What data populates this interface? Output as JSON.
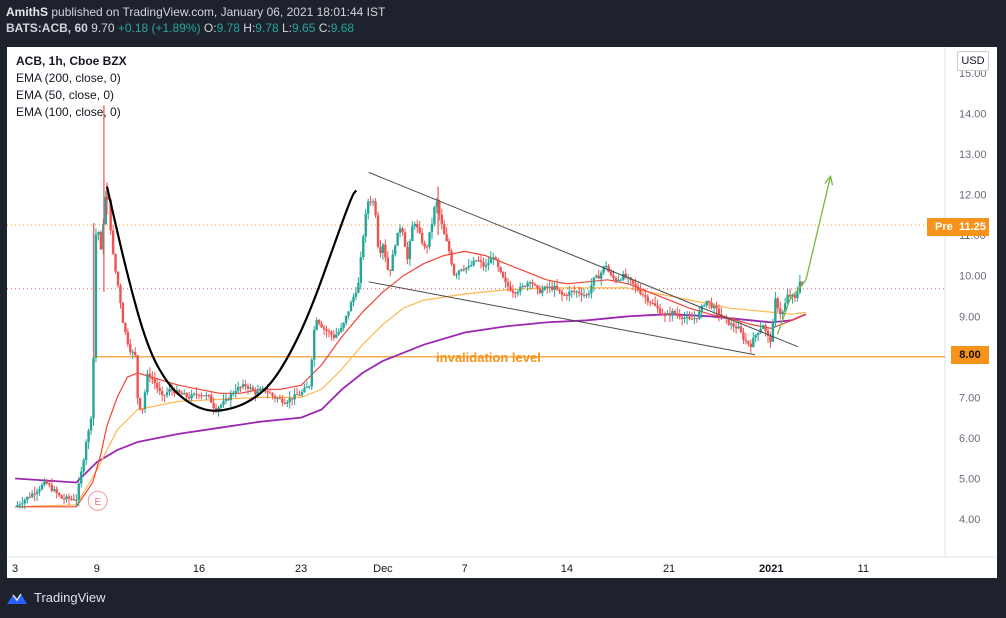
{
  "header": {
    "author": "AmithS",
    "published": "published on TradingView.com, January 06, 2021 18:01:44 IST",
    "symbol": "BATS:ACB, 60",
    "last": "9.70",
    "change": "+0.18 (+1.89%)",
    "o_label": "O:",
    "o": "9.78",
    "h_label": "H:",
    "h": "9.78",
    "l_label": "L:",
    "l": "9.65",
    "c_label": "C:",
    "c": "9.68"
  },
  "legend": {
    "title": "ACB, 1h, Cboe BZX",
    "ema200": "EMA (200, close, 0)",
    "ema50": "EMA (50, close, 0)",
    "ema100": "EMA (100, close, 0)"
  },
  "price_scale": {
    "currency": "USD"
  },
  "tags": {
    "pre_label": "Pre",
    "pre_value": "11.25",
    "level_value": "8.00"
  },
  "annotations": {
    "invalidation": "invalidation level",
    "event_marker": "E"
  },
  "footer": {
    "brand": "TradingView"
  },
  "colors": {
    "up": "#26a69a",
    "down": "#ef5350",
    "ema200": "#9c27b0",
    "ema50": "#f44336",
    "ema100": "#ffb74d",
    "level": "#f7931a",
    "arrow": "#7cb342"
  },
  "chart_data": {
    "type": "candlestick",
    "title": "ACB, 1h, Cboe BZX",
    "ylim": [
      3.2,
      15.5
    ],
    "y_ticks": [
      "4.00",
      "5.00",
      "6.00",
      "7.00",
      "8.00",
      "9.00",
      "10.00",
      "11.00",
      "12.00",
      "13.00",
      "14.00",
      "15.00"
    ],
    "x_ticks": [
      {
        "label": "3",
        "pos": 0
      },
      {
        "label": "9",
        "pos": 4
      },
      {
        "label": "16",
        "pos": 9
      },
      {
        "label": "23",
        "pos": 14
      },
      {
        "label": "Dec",
        "pos": 18
      },
      {
        "label": "7",
        "pos": 22
      },
      {
        "label": "14",
        "pos": 27
      },
      {
        "label": "21",
        "pos": 32
      },
      {
        "label": "2021",
        "pos": 37
      },
      {
        "label": "11",
        "pos": 41.5
      }
    ],
    "xlim": [
      0,
      45.5
    ],
    "close_path": [
      [
        0,
        4.3
      ],
      [
        0.8,
        4.6
      ],
      [
        1.5,
        4.9
      ],
      [
        2.3,
        4.5
      ],
      [
        3,
        4.5
      ],
      [
        3.3,
        5.3
      ],
      [
        3.5,
        6.0
      ],
      [
        3.7,
        6.3
      ],
      [
        3.8,
        7.5
      ],
      [
        3.85,
        8.1
      ],
      [
        3.95,
        11.0
      ],
      [
        4.05,
        11.2
      ],
      [
        4.2,
        10.6
      ],
      [
        4.35,
        11.5
      ],
      [
        4.5,
        12.2
      ],
      [
        4.6,
        11.6
      ],
      [
        4.8,
        10.5
      ],
      [
        4.95,
        10.0
      ],
      [
        5.1,
        9.6
      ],
      [
        5.3,
        8.8
      ],
      [
        5.6,
        8.2
      ],
      [
        5.9,
        8.0
      ],
      [
        6.0,
        7.0
      ],
      [
        6.2,
        6.6
      ],
      [
        6.5,
        7.6
      ],
      [
        6.8,
        7.4
      ],
      [
        7.2,
        7.0
      ],
      [
        7.6,
        7.2
      ],
      [
        8.0,
        7.1
      ],
      [
        8.5,
        7.0
      ],
      [
        9,
        7.1
      ],
      [
        9.5,
        7.0
      ],
      [
        9.8,
        6.7
      ],
      [
        10.3,
        6.9
      ],
      [
        10.8,
        7.2
      ],
      [
        11.3,
        7.3
      ],
      [
        11.8,
        7.1
      ],
      [
        12.2,
        7.2
      ],
      [
        12.7,
        7.0
      ],
      [
        13.2,
        6.9
      ],
      [
        13.6,
        7.0
      ],
      [
        14,
        7.1
      ],
      [
        14.4,
        7.3
      ],
      [
        14.7,
        9.0
      ],
      [
        15.1,
        8.7
      ],
      [
        15.6,
        8.5
      ],
      [
        16.0,
        8.7
      ],
      [
        16.5,
        9.4
      ],
      [
        16.8,
        9.8
      ],
      [
        17.1,
        11.3
      ],
      [
        17.3,
        11.9
      ],
      [
        17.6,
        11.8
      ],
      [
        17.8,
        10.5
      ],
      [
        18.0,
        10.8
      ],
      [
        18.3,
        10.0
      ],
      [
        18.6,
        10.8
      ],
      [
        18.9,
        11.3
      ],
      [
        19.2,
        10.4
      ],
      [
        19.5,
        11.4
      ],
      [
        19.8,
        11.0
      ],
      [
        20.1,
        10.6
      ],
      [
        20.4,
        11.3
      ],
      [
        20.6,
        11.9
      ],
      [
        20.8,
        11.4
      ],
      [
        21.0,
        11.0
      ],
      [
        21.2,
        10.7
      ],
      [
        21.5,
        10.0
      ],
      [
        21.8,
        10.2
      ],
      [
        22.2,
        10.2
      ],
      [
        22.6,
        10.4
      ],
      [
        23.0,
        10.2
      ],
      [
        23.4,
        10.5
      ],
      [
        23.7,
        10.1
      ],
      [
        24.0,
        9.8
      ],
      [
        24.4,
        9.6
      ],
      [
        24.8,
        9.7
      ],
      [
        25.2,
        9.9
      ],
      [
        25.6,
        9.6
      ],
      [
        26.0,
        9.7
      ],
      [
        26.4,
        9.7
      ],
      [
        26.8,
        9.5
      ],
      [
        27.2,
        9.6
      ],
      [
        27.6,
        9.6
      ],
      [
        28.0,
        9.5
      ],
      [
        28.3,
        9.9
      ],
      [
        28.6,
        10.0
      ],
      [
        28.9,
        10.3
      ],
      [
        29.1,
        10.0
      ],
      [
        29.4,
        9.9
      ],
      [
        29.8,
        10.0
      ],
      [
        30.2,
        9.8
      ],
      [
        30.6,
        9.6
      ],
      [
        31.0,
        9.4
      ],
      [
        31.4,
        9.2
      ],
      [
        31.8,
        9.0
      ],
      [
        32.2,
        9.1
      ],
      [
        32.6,
        9.0
      ],
      [
        33.0,
        8.9
      ],
      [
        33.4,
        9.0
      ],
      [
        33.8,
        9.4
      ],
      [
        34.2,
        9.2
      ],
      [
        34.6,
        9.0
      ],
      [
        35.0,
        8.8
      ],
      [
        35.4,
        8.7
      ],
      [
        35.7,
        8.4
      ],
      [
        36.0,
        8.3
      ],
      [
        36.3,
        8.6
      ],
      [
        36.6,
        8.8
      ],
      [
        36.8,
        8.5
      ],
      [
        37.0,
        8.4
      ],
      [
        37.2,
        9.4
      ],
      [
        37.5,
        9.0
      ],
      [
        37.8,
        9.5
      ],
      [
        38.0,
        9.5
      ],
      [
        38.2,
        9.4
      ],
      [
        38.4,
        9.9
      ],
      [
        38.6,
        9.7
      ]
    ],
    "ema200": [
      [
        0,
        5.0
      ],
      [
        3,
        4.9
      ],
      [
        4,
        5.4
      ],
      [
        5,
        5.7
      ],
      [
        6,
        5.9
      ],
      [
        8,
        6.1
      ],
      [
        10,
        6.25
      ],
      [
        12,
        6.4
      ],
      [
        14,
        6.5
      ],
      [
        15,
        6.7
      ],
      [
        16,
        7.2
      ],
      [
        17,
        7.6
      ],
      [
        18,
        7.9
      ],
      [
        20,
        8.3
      ],
      [
        22,
        8.6
      ],
      [
        24,
        8.75
      ],
      [
        26,
        8.85
      ],
      [
        28,
        8.9
      ],
      [
        30,
        9.0
      ],
      [
        32,
        9.05
      ],
      [
        34,
        9.0
      ],
      [
        35,
        8.95
      ],
      [
        36,
        8.9
      ],
      [
        37,
        8.85
      ],
      [
        38,
        8.9
      ],
      [
        38.7,
        9.05
      ]
    ],
    "ema50": [
      [
        0,
        4.3
      ],
      [
        3,
        4.3
      ],
      [
        3.8,
        4.9
      ],
      [
        4.2,
        5.6
      ],
      [
        4.5,
        6.3
      ],
      [
        5.0,
        7.0
      ],
      [
        5.5,
        7.5
      ],
      [
        6,
        7.6
      ],
      [
        7,
        7.45
      ],
      [
        8,
        7.3
      ],
      [
        9,
        7.2
      ],
      [
        10,
        7.1
      ],
      [
        11,
        7.1
      ],
      [
        12,
        7.2
      ],
      [
        13,
        7.2
      ],
      [
        14,
        7.3
      ],
      [
        15,
        7.8
      ],
      [
        16,
        8.5
      ],
      [
        17,
        9.1
      ],
      [
        18,
        9.6
      ],
      [
        19,
        10.0
      ],
      [
        20,
        10.3
      ],
      [
        21,
        10.5
      ],
      [
        22,
        10.6
      ],
      [
        23,
        10.5
      ],
      [
        24,
        10.3
      ],
      [
        25,
        10.1
      ],
      [
        26,
        9.9
      ],
      [
        27,
        9.8
      ],
      [
        28,
        9.85
      ],
      [
        29,
        9.9
      ],
      [
        30,
        9.8
      ],
      [
        31,
        9.6
      ],
      [
        32,
        9.4
      ],
      [
        33,
        9.2
      ],
      [
        34,
        9.05
      ],
      [
        35,
        8.95
      ],
      [
        36,
        8.8
      ],
      [
        37,
        8.7
      ],
      [
        38,
        8.9
      ],
      [
        38.7,
        9.05
      ]
    ],
    "ema100": [
      [
        0,
        4.3
      ],
      [
        3,
        4.35
      ],
      [
        4,
        5.2
      ],
      [
        5,
        6.2
      ],
      [
        6,
        6.7
      ],
      [
        8,
        6.9
      ],
      [
        10,
        6.95
      ],
      [
        12,
        7.0
      ],
      [
        14,
        7.0
      ],
      [
        15,
        7.2
      ],
      [
        16,
        7.7
      ],
      [
        17,
        8.3
      ],
      [
        18,
        8.8
      ],
      [
        19,
        9.2
      ],
      [
        20,
        9.4
      ],
      [
        22,
        9.55
      ],
      [
        24,
        9.65
      ],
      [
        26,
        9.7
      ],
      [
        28,
        9.7
      ],
      [
        30,
        9.7
      ],
      [
        32,
        9.5
      ],
      [
        34,
        9.3
      ],
      [
        35,
        9.2
      ],
      [
        36,
        9.15
      ],
      [
        37,
        9.1
      ],
      [
        38,
        9.05
      ],
      [
        38.7,
        9.1
      ]
    ],
    "levels": {
      "pre_market": 11.25,
      "current": 9.68,
      "invalidation": 8.0
    },
    "trendlines": [
      {
        "name": "upper",
        "from": [
          17.3,
          12.55
        ],
        "to": [
          38.3,
          8.25
        ]
      },
      {
        "name": "lower",
        "from": [
          17.3,
          9.85
        ],
        "to": [
          36.2,
          8.05
        ]
      }
    ],
    "cup": [
      [
        4.5,
        12.2
      ],
      [
        5.5,
        10.0
      ],
      [
        6.5,
        8.2
      ],
      [
        7.5,
        7.3
      ],
      [
        8.5,
        6.85
      ],
      [
        9.5,
        6.65
      ],
      [
        10.5,
        6.7
      ],
      [
        11.5,
        6.9
      ],
      [
        12.5,
        7.3
      ],
      [
        13.5,
        8.1
      ],
      [
        14.5,
        9.2
      ],
      [
        15.5,
        10.6
      ],
      [
        16.5,
        12.0
      ],
      [
        16.7,
        12.1
      ]
    ],
    "projection_arrow": [
      [
        37.3,
        8.55
      ],
      [
        37.9,
        9.4
      ],
      [
        38.7,
        9.9
      ],
      [
        39.9,
        12.45
      ]
    ],
    "invalidation_line_range": [
      3.8,
      45.5
    ],
    "trend_segments_price_range": [
      8.0,
      12.55
    ]
  }
}
